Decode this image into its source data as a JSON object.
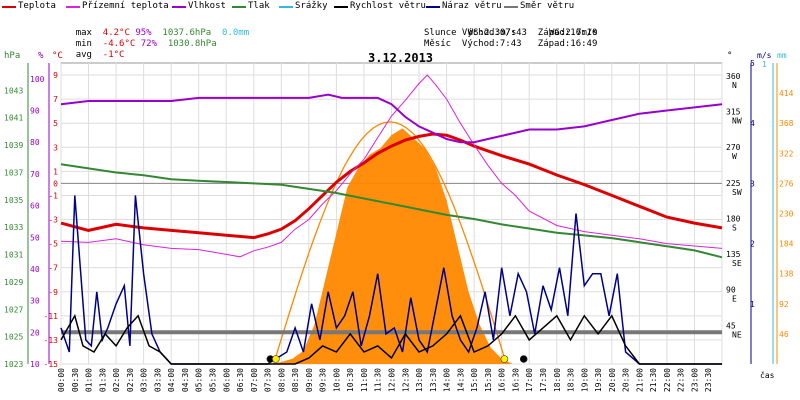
{
  "legend": [
    {
      "label": "Teplota",
      "color": "#dd0000"
    },
    {
      "label": "Přízemní teplota",
      "color": "#dd22dd"
    },
    {
      "label": "Vlhkost",
      "color": "#9900cc"
    },
    {
      "label": "Tlak",
      "color": "#338833"
    },
    {
      "label": "Srážky",
      "color": "#33bbdd"
    },
    {
      "label": "Rychlost větru",
      "color": "#000000"
    },
    {
      "label": "Náraz větru",
      "color": "#000088"
    },
    {
      "label": "Směr větru",
      "color": "#777777"
    }
  ],
  "stats": {
    "max_label": "max",
    "max_temp": "4.2°C",
    "max_hum": "95%",
    "max_press": "1037.6hPa",
    "max_rain": "0.0mm",
    "min_label": "min",
    "min_temp": "-4.6°C",
    "min_hum": "72%",
    "min_press": "1030.8hPa",
    "avg_label": "avg",
    "avg_temp": "-1°C"
  },
  "wind_info": {
    "ws": "WS:2.3m/s",
    "wg": "WG:2.7m/s"
  },
  "sun_moon": {
    "sun": "Slunce Východ:07:43  Západ:16:10",
    "moon": "Měsíc  Východ:7:43   Západ:16:49"
  },
  "chart_data": {
    "type": "line",
    "title": "3.12.2013",
    "xlabel": "čas",
    "x_ticks": [
      "00:00",
      "00:30",
      "01:00",
      "01:30",
      "02:00",
      "02:30",
      "03:00",
      "03:30",
      "04:00",
      "04:30",
      "05:00",
      "05:30",
      "06:00",
      "06:30",
      "07:00",
      "07:30",
      "08:00",
      "08:30",
      "09:00",
      "09:30",
      "10:00",
      "10:30",
      "11:00",
      "11:30",
      "12:00",
      "12:30",
      "13:00",
      "13:30",
      "14:00",
      "14:30",
      "15:00",
      "15:30",
      "16:00",
      "16:30",
      "17:00",
      "17:30",
      "18:00",
      "18:30",
      "19:00",
      "19:30",
      "20:00",
      "20:30",
      "21:00",
      "21:30",
      "22:00",
      "22:30",
      "23:00",
      "23:30"
    ],
    "axes": {
      "hpa": {
        "unit": "hPa",
        "range": [
          1023,
          1045
        ],
        "ticks": [
          "1043",
          "1041",
          "1039",
          "1037",
          "1035",
          "1033",
          "1031",
          "1029",
          "1027",
          "1025",
          "1023"
        ]
      },
      "pct": {
        "unit": "%",
        "range": [
          10,
          105
        ],
        "ticks": [
          "100",
          "90",
          "80",
          "70",
          "60",
          "50",
          "40",
          "30",
          "20",
          "10"
        ]
      },
      "temp": {
        "unit": "°C",
        "range": [
          -15,
          10
        ],
        "ticks": [
          "9",
          "7",
          "5",
          "3",
          "1",
          "0",
          "-1",
          "-3",
          "-5",
          "-7",
          "-9",
          "-11",
          "-13",
          "-15"
        ]
      },
      "dir": {
        "unit": "°",
        "range": [
          0,
          380
        ],
        "ticks": [
          {
            "v": "360",
            "l": "N"
          },
          {
            "v": "315",
            "l": "NW"
          },
          {
            "v": "270",
            "l": "W"
          },
          {
            "v": "225",
            "l": "SW"
          },
          {
            "v": "180",
            "l": "S"
          },
          {
            "v": "135",
            "l": "SE"
          },
          {
            "v": "90",
            "l": "E"
          },
          {
            "v": "45",
            "l": "NE"
          }
        ]
      },
      "ms": {
        "unit": "m/s",
        "range": [
          0,
          5
        ],
        "ticks": [
          "5",
          "4",
          "3",
          "2",
          "1"
        ]
      },
      "mm": {
        "unit": "mm",
        "top": "1"
      },
      "rad": {
        "unit": "",
        "range": [
          0,
          460
        ],
        "ticks": [
          "414",
          "368",
          "322",
          "276",
          "230",
          "184",
          "138",
          "92",
          "46"
        ]
      }
    },
    "series": [
      {
        "name": "Teplota",
        "color": "#dd0000",
        "axis": "temp",
        "x": [
          0,
          1,
          2,
          3,
          4,
          5,
          6,
          7,
          7.5,
          8,
          8.5,
          9,
          9.5,
          10,
          10.5,
          11,
          11.5,
          12,
          12.5,
          13,
          13.5,
          14,
          14.5,
          15,
          15.5,
          16,
          17,
          18,
          19,
          20,
          21,
          22,
          23,
          24
        ],
        "y": [
          -3.3,
          -3.9,
          -3.4,
          -3.7,
          -3.9,
          -4.1,
          -4.3,
          -4.5,
          -4.2,
          -3.8,
          -3.1,
          -2.1,
          -1.0,
          0.1,
          1.0,
          1.7,
          2.5,
          3.1,
          3.6,
          3.9,
          4.1,
          4.0,
          3.6,
          3.1,
          2.7,
          2.3,
          1.6,
          0.7,
          -0.1,
          -1.0,
          -1.9,
          -2.8,
          -3.3,
          -3.7
        ]
      },
      {
        "name": "Přízemní teplota",
        "color": "#dd22dd",
        "axis": "temp",
        "x": [
          0,
          1,
          2,
          3,
          4,
          5,
          6,
          6.5,
          7,
          7.5,
          8,
          8.5,
          9,
          9.5,
          10,
          10.5,
          11,
          11.5,
          12,
          12.5,
          13,
          13.3,
          13.6,
          14,
          14.5,
          15,
          15.5,
          16,
          16.5,
          17,
          18,
          19,
          20,
          21,
          22,
          23,
          24
        ],
        "y": [
          -4.8,
          -4.9,
          -4.6,
          -5.1,
          -5.4,
          -5.5,
          -5.9,
          -6.1,
          -5.6,
          -5.3,
          -4.9,
          -3.8,
          -3.0,
          -1.7,
          -0.6,
          0.8,
          2.0,
          3.8,
          5.6,
          6.9,
          8.3,
          9.0,
          8.2,
          7.0,
          5.0,
          3.2,
          1.5,
          0.0,
          -1.0,
          -2.3,
          -3.5,
          -4.0,
          -4.3,
          -4.6,
          -5.0,
          -5.2,
          -5.4
        ]
      },
      {
        "name": "Vlhkost",
        "color": "#9900cc",
        "axis": "pct",
        "x": [
          0,
          1,
          2,
          3,
          4,
          5,
          6,
          7,
          8,
          9,
          9.7,
          10.2,
          10.8,
          11.5,
          12,
          12.5,
          13,
          13.5,
          14,
          14.5,
          15,
          15.5,
          16,
          17,
          18,
          19,
          20,
          21,
          22,
          23,
          24
        ],
        "y": [
          92,
          93,
          93,
          93,
          93,
          94,
          94,
          94,
          94,
          94,
          95,
          94,
          94,
          94,
          92,
          88,
          85,
          83,
          81,
          80,
          80,
          81,
          82,
          84,
          84,
          85,
          87,
          89,
          90,
          91,
          92
        ]
      },
      {
        "name": "Tlak",
        "color": "#338833",
        "axis": "hpa",
        "x": [
          0,
          1,
          2,
          3,
          4,
          5,
          6,
          7,
          8,
          9,
          10,
          11,
          12,
          13,
          14,
          15,
          16,
          17,
          18,
          19,
          20,
          21,
          22,
          23,
          24
        ],
        "y": [
          1037.6,
          1037.3,
          1037.0,
          1036.8,
          1036.5,
          1036.4,
          1036.3,
          1036.2,
          1036.1,
          1035.8,
          1035.5,
          1035.1,
          1034.7,
          1034.3,
          1033.9,
          1033.6,
          1033.2,
          1032.9,
          1032.6,
          1032.4,
          1032.2,
          1031.9,
          1031.6,
          1031.3,
          1030.8
        ]
      },
      {
        "name": "Směr větru",
        "color": "#777777",
        "axis": "dir",
        "x": [
          0,
          24
        ],
        "y": [
          40,
          40
        ]
      },
      {
        "name": "Náraz větru",
        "color": "#000088",
        "axis": "ms",
        "x": [
          0,
          0.3,
          0.5,
          0.7,
          0.9,
          1.1,
          1.3,
          1.5,
          1.7,
          2.0,
          2.3,
          2.5,
          2.7,
          3.0,
          3.3,
          3.6,
          4.0,
          7.5,
          8.2,
          8.5,
          8.8,
          9.1,
          9.4,
          9.7,
          10.0,
          10.3,
          10.6,
          10.9,
          11.2,
          11.5,
          11.8,
          12.1,
          12.4,
          12.7,
          13.0,
          13.3,
          13.6,
          13.9,
          14.2,
          14.5,
          14.8,
          15.1,
          15.4,
          15.7,
          16.0,
          16.3,
          16.6,
          16.9,
          17.2,
          17.5,
          17.8,
          18.1,
          18.4,
          18.7,
          19.0,
          19.3,
          19.6,
          19.9,
          20.2,
          20.5,
          21,
          24
        ],
        "y": [
          0.6,
          0.2,
          2.8,
          1.6,
          0.4,
          0.3,
          1.2,
          0.4,
          0.6,
          1.0,
          1.3,
          0.3,
          2.8,
          1.5,
          0.5,
          0.2,
          0,
          0,
          0.2,
          0.6,
          0.2,
          1.0,
          0.4,
          1.2,
          0.6,
          0.8,
          1.2,
          0.3,
          0.8,
          1.5,
          0.5,
          0.6,
          0.2,
          1.1,
          0.4,
          0.2,
          0.9,
          1.6,
          0.8,
          0.4,
          0.2,
          0.6,
          1.2,
          0.4,
          1.6,
          0.8,
          1.5,
          1.2,
          0.5,
          1.3,
          0.9,
          1.6,
          0.8,
          2.5,
          1.3,
          1.5,
          1.5,
          0.8,
          1.5,
          0.2,
          0,
          0
        ]
      },
      {
        "name": "Rychlost větru",
        "color": "#000000",
        "axis": "ms",
        "x": [
          0,
          0.5,
          0.8,
          1.2,
          1.6,
          2.0,
          2.4,
          2.8,
          3.2,
          3.6,
          4.0,
          8.5,
          9.0,
          9.5,
          10.0,
          10.5,
          11.0,
          11.5,
          12.0,
          12.5,
          13.0,
          13.5,
          14.0,
          14.5,
          15.0,
          15.5,
          16.0,
          16.5,
          17.0,
          17.5,
          18.0,
          18.5,
          19.0,
          19.5,
          20.0,
          20.5,
          21,
          24
        ],
        "y": [
          0.4,
          0.8,
          0.3,
          0.2,
          0.5,
          0.3,
          0.6,
          0.8,
          0.3,
          0.2,
          0,
          0,
          0.1,
          0.3,
          0.2,
          0.5,
          0.2,
          0.3,
          0.1,
          0.5,
          0.2,
          0.3,
          0.5,
          0.8,
          0.2,
          0.3,
          0.5,
          0.8,
          0.4,
          0.6,
          0.8,
          0.4,
          0.8,
          0.5,
          0.8,
          0.3,
          0,
          0
        ]
      }
    ],
    "radiation": {
      "name": "Sluneční záření",
      "color": "#ff8800",
      "axis": "rad",
      "x": [
        7.6,
        8.0,
        8.4,
        8.8,
        9.2,
        9.6,
        10.0,
        10.4,
        10.8,
        11.2,
        11.6,
        12.0,
        12.4,
        12.8,
        13.2,
        13.6,
        14.0,
        14.4,
        14.8,
        15.2,
        15.6,
        16.0,
        16.4
      ],
      "y": [
        0,
        3,
        8,
        20,
        60,
        130,
        200,
        270,
        300,
        320,
        330,
        350,
        360,
        345,
        330,
        300,
        250,
        180,
        110,
        60,
        25,
        8,
        0
      ]
    },
    "theoretical_radiation": {
      "color": "#ff8800",
      "peak": 370,
      "from": 7.72,
      "to": 16.17
    },
    "sun_markers": [
      {
        "t": 7.6,
        "color": "#000000"
      },
      {
        "t": 7.8,
        "color": "#ffee00"
      },
      {
        "t": 16.1,
        "color": "#ffee00"
      },
      {
        "t": 16.8,
        "color": "#000000"
      }
    ]
  }
}
